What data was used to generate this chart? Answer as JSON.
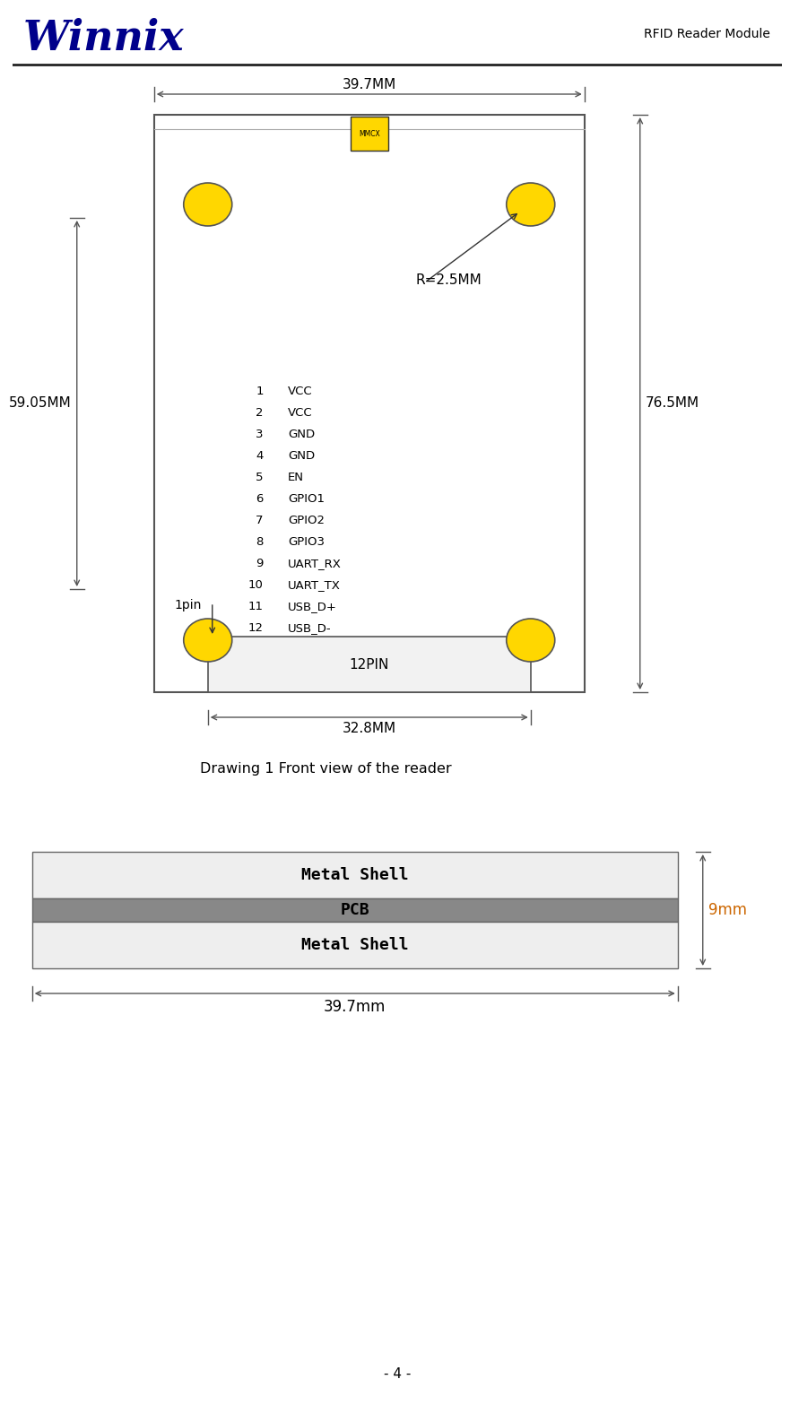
{
  "title_right": "RFID Reader Module",
  "logo_text": "Winnix",
  "logo_color": "#00008B",
  "bg_color": "#ffffff",
  "drawing_caption": "Drawing 1 Front view of the reader",
  "page_number": "- 4 -",
  "top_dim_label": "39.7MM",
  "bottom_dim_label": "32.8MM",
  "left_dim_label": "59.05MM",
  "right_dim_label": "76.5MM",
  "radius_label": "R=2.5MM",
  "mmcx_label": "MMCX",
  "pin_label": "12PIN",
  "one_pin_label": "1pin",
  "pin_list": [
    [
      "1",
      "VCC"
    ],
    [
      "2",
      "VCC"
    ],
    [
      "3",
      "GND"
    ],
    [
      "4",
      "GND"
    ],
    [
      "5",
      "EN"
    ],
    [
      "6",
      "GPIO1"
    ],
    [
      "7",
      "GPIO2"
    ],
    [
      "8",
      "GPIO3"
    ],
    [
      "9",
      "UART_RX"
    ],
    [
      "10",
      "UART_TX"
    ],
    [
      "11",
      "USB_D+"
    ],
    [
      "12",
      "USB_D-"
    ]
  ],
  "layer_labels": [
    "Metal Shell",
    "PCB",
    "Metal Shell"
  ],
  "layer_colors": [
    "#eeeeee",
    "#888888",
    "#eeeeee"
  ],
  "dim_9mm": "9mm",
  "dim_39_7mm": "39.7mm",
  "yellow_color": "#FFD700",
  "line_color": "#555555",
  "dim_color": "#555555",
  "board_facecolor": "#ffffff"
}
